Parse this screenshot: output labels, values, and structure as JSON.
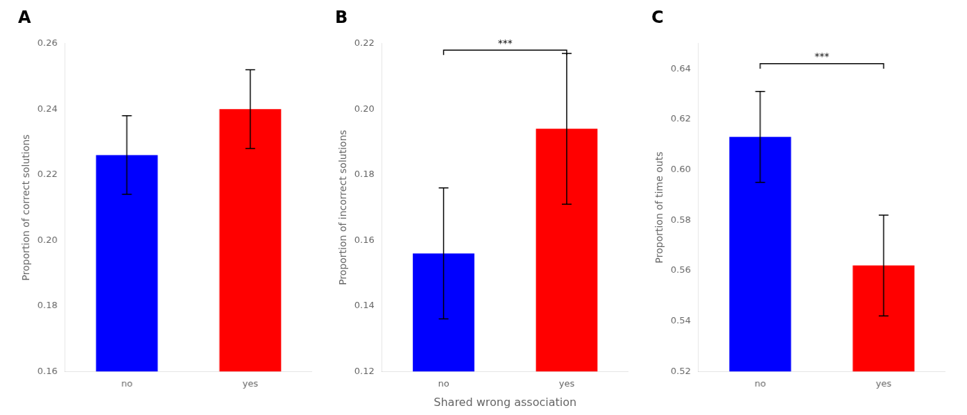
{
  "chart_data": [
    {
      "type": "bar",
      "title": "A",
      "ylabel": "Proportion of correct solutions",
      "categories": [
        "no",
        "yes"
      ],
      "values": [
        0.226,
        0.24
      ],
      "errors": [
        0.012,
        0.012
      ],
      "colors": [
        "#0000ff",
        "#ff0000"
      ],
      "ylim": [
        0.16,
        0.26
      ],
      "yticks": [
        0.16,
        0.18,
        {
          "value": 0.2,
          "label": "0.20"
        },
        0.22,
        0.24,
        0.26
      ],
      "grid": false
    },
    {
      "type": "bar",
      "title": "B",
      "ylabel": "Proportion of incorrect solutions",
      "xlabel": "Shared wrong association",
      "categories": [
        "no",
        "yes"
      ],
      "values": [
        0.156,
        0.194
      ],
      "errors": [
        0.02,
        0.023
      ],
      "colors": [
        "#0000ff",
        "#ff0000"
      ],
      "ylim": [
        0.12,
        0.22
      ],
      "yticks": [
        0.12,
        0.14,
        0.16,
        0.18,
        {
          "value": 0.2,
          "label": "0.20"
        },
        0.22
      ],
      "annotations": [
        {
          "text": "***",
          "y": 0.218,
          "x": [
            "no",
            "yes"
          ]
        }
      ],
      "grid": false
    },
    {
      "type": "bar",
      "title": "C",
      "ylabel": "Proportion of time outs",
      "categories": [
        "no",
        "yes"
      ],
      "values": [
        0.613,
        0.562
      ],
      "errors": [
        0.018,
        0.02
      ],
      "colors": [
        "#0000ff",
        "#ff0000"
      ],
      "ylim": [
        0.52,
        0.65
      ],
      "yticks": [
        0.52,
        0.54,
        0.56,
        0.58,
        {
          "value": 0.6,
          "label": "0.60"
        },
        0.62,
        0.64
      ],
      "annotations": [
        {
          "text": "***",
          "y": 0.642,
          "x": [
            "no",
            "yes"
          ]
        }
      ],
      "grid": false
    }
  ]
}
